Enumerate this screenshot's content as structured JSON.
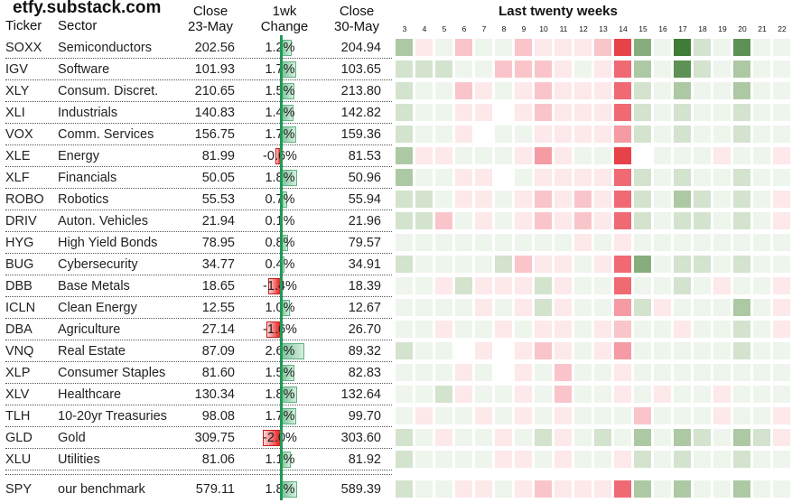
{
  "title": "etfy.substack.com",
  "headers": {
    "ticker": "Ticker",
    "sector": "Sector",
    "close1_line1": "Close",
    "close1_line2": "23-May",
    "chg_line1": "1wk",
    "chg_line2": "Change",
    "close2_line1": "Close",
    "close2_line2": "30-May",
    "weeks_title": "Last twenty weeks"
  },
  "weeks": [
    "3",
    "4",
    "5",
    "6",
    "7",
    "8",
    "9",
    "10",
    "11",
    "12",
    "13",
    "14",
    "15",
    "16",
    "17",
    "18",
    "19",
    "20",
    "21",
    "22"
  ],
  "colors": {
    "positive_bar": "#9fd4b2",
    "negative_bar": "#ee3b3b",
    "axis": "#1e9a55"
  },
  "rows": [
    {
      "ticker": "SOXX",
      "sector": "Semiconductors",
      "close1": "202.56",
      "change": "1.2%",
      "change_value": 1.2,
      "close2": "204.94",
      "heat": [
        3,
        -1,
        1,
        -2,
        1,
        1,
        -2,
        -1,
        -1,
        -1,
        -2,
        -5,
        4,
        1,
        6,
        2,
        1,
        5,
        1,
        1
      ]
    },
    {
      "ticker": "IGV",
      "sector": "Software",
      "close1": "101.93",
      "change": "1.7%",
      "change_value": 1.7,
      "close2": "103.65",
      "heat": [
        2,
        2,
        2,
        1,
        1,
        -2,
        -2,
        -2,
        -1,
        1,
        -1,
        -4,
        3,
        1,
        5,
        2,
        1,
        3,
        1,
        1
      ]
    },
    {
      "ticker": "XLY",
      "sector": "Consum. Discret.",
      "close1": "210.65",
      "change": "1.5%",
      "change_value": 1.5,
      "close2": "213.80",
      "heat": [
        2,
        1,
        1,
        -2,
        -1,
        1,
        -1,
        -2,
        -1,
        -1,
        -1,
        -4,
        2,
        1,
        3,
        1,
        1,
        3,
        1,
        1
      ]
    },
    {
      "ticker": "XLI",
      "sector": "Industrials",
      "close1": "140.83",
      "change": "1.4%",
      "change_value": 1.4,
      "close2": "142.82",
      "heat": [
        2,
        1,
        1,
        -1,
        -1,
        0,
        -1,
        -2,
        -1,
        -1,
        -1,
        -4,
        2,
        1,
        2,
        1,
        1,
        2,
        1,
        1
      ]
    },
    {
      "ticker": "VOX",
      "sector": "Comm. Services",
      "close1": "156.75",
      "change": "1.7%",
      "change_value": 1.7,
      "close2": "159.36",
      "heat": [
        2,
        1,
        1,
        -1,
        0,
        1,
        1,
        -1,
        -1,
        -1,
        -1,
        -3,
        2,
        1,
        2,
        1,
        1,
        2,
        1,
        1
      ]
    },
    {
      "ticker": "XLE",
      "sector": "Energy",
      "close1": "81.99",
      "change": "-0.6%",
      "change_value": -0.6,
      "close2": "81.53",
      "heat": [
        3,
        -1,
        -1,
        1,
        1,
        1,
        -1,
        -3,
        -1,
        1,
        1,
        -5,
        0,
        1,
        1,
        1,
        -1,
        1,
        1,
        -1
      ]
    },
    {
      "ticker": "XLF",
      "sector": "Financials",
      "close1": "50.05",
      "change": "1.8%",
      "change_value": 1.8,
      "close2": "50.96",
      "heat": [
        3,
        1,
        1,
        -1,
        -1,
        0,
        1,
        -1,
        -1,
        -1,
        -1,
        -4,
        2,
        1,
        2,
        1,
        1,
        2,
        1,
        1
      ]
    },
    {
      "ticker": "ROBO",
      "sector": "Robotics",
      "close1": "55.53",
      "change": "0.7%",
      "change_value": 0.7,
      "close2": "55.94",
      "heat": [
        2,
        2,
        1,
        -1,
        -1,
        1,
        -1,
        -2,
        -1,
        -2,
        -1,
        -4,
        2,
        1,
        3,
        2,
        1,
        2,
        1,
        -1
      ]
    },
    {
      "ticker": "DRIV",
      "sector": "Auton. Vehicles",
      "close1": "21.94",
      "change": "0.1%",
      "change_value": 0.1,
      "close2": "21.96",
      "heat": [
        2,
        2,
        -2,
        1,
        -1,
        1,
        -1,
        -2,
        -1,
        -2,
        -1,
        -4,
        2,
        1,
        2,
        2,
        1,
        2,
        1,
        -1
      ]
    },
    {
      "ticker": "HYG",
      "sector": "High Yield Bonds",
      "close1": "78.95",
      "change": "0.8%",
      "change_value": 0.8,
      "close2": "79.57",
      "heat": [
        1,
        1,
        1,
        1,
        1,
        1,
        1,
        1,
        1,
        -1,
        1,
        -1,
        1,
        1,
        1,
        1,
        1,
        1,
        1,
        1
      ]
    },
    {
      "ticker": "BUG",
      "sector": "Cybersecurity",
      "close1": "34.77",
      "change": "0.4%",
      "change_value": 0.4,
      "close2": "34.91",
      "heat": [
        2,
        1,
        1,
        1,
        1,
        2,
        -2,
        -1,
        -1,
        1,
        -1,
        -4,
        4,
        1,
        2,
        2,
        1,
        2,
        1,
        1
      ]
    },
    {
      "ticker": "DBB",
      "sector": "Base Metals",
      "close1": "18.65",
      "change": "-1.4%",
      "change_value": -1.4,
      "close2": "18.39",
      "heat": [
        1,
        1,
        -1,
        2,
        -1,
        -1,
        -1,
        2,
        -1,
        1,
        1,
        -4,
        1,
        1,
        2,
        1,
        -1,
        1,
        1,
        -1
      ]
    },
    {
      "ticker": "ICLN",
      "sector": "Clean Energy",
      "close1": "12.55",
      "change": "1.0%",
      "change_value": 1.0,
      "close2": "12.67",
      "heat": [
        1,
        1,
        1,
        1,
        -1,
        1,
        -1,
        2,
        -1,
        1,
        1,
        -3,
        2,
        -1,
        1,
        1,
        1,
        3,
        1,
        -1
      ]
    },
    {
      "ticker": "DBA",
      "sector": "Agriculture",
      "close1": "27.14",
      "change": "-1.6%",
      "change_value": -1.6,
      "close2": "26.70",
      "heat": [
        1,
        1,
        -1,
        1,
        1,
        -1,
        1,
        -1,
        -1,
        1,
        -1,
        -2,
        1,
        1,
        -1,
        1,
        1,
        2,
        1,
        -1
      ]
    },
    {
      "ticker": "VNQ",
      "sector": "Real Estate",
      "close1": "87.09",
      "change": "2.6%",
      "change_value": 2.6,
      "close2": "89.32",
      "heat": [
        2,
        1,
        1,
        0,
        -1,
        0,
        -1,
        -2,
        -1,
        1,
        -1,
        -3,
        1,
        1,
        1,
        1,
        1,
        2,
        1,
        1
      ]
    },
    {
      "ticker": "XLP",
      "sector": "Consumer Staples",
      "close1": "81.60",
      "change": "1.5%",
      "change_value": 1.5,
      "close2": "82.83",
      "heat": [
        1,
        1,
        1,
        -1,
        1,
        0,
        -1,
        1,
        -2,
        1,
        1,
        -1,
        1,
        1,
        1,
        1,
        1,
        1,
        1,
        1
      ]
    },
    {
      "ticker": "XLV",
      "sector": "Healthcare",
      "close1": "130.34",
      "change": "1.8%",
      "change_value": 1.8,
      "close2": "132.64",
      "heat": [
        1,
        1,
        2,
        -1,
        1,
        1,
        -1,
        1,
        -2,
        1,
        1,
        -1,
        1,
        -1,
        1,
        1,
        -1,
        1,
        1,
        1
      ]
    },
    {
      "ticker": "TLH",
      "sector": "10-20yr Treasuries",
      "close1": "98.08",
      "change": "1.7%",
      "change_value": 1.7,
      "close2": "99.70",
      "heat": [
        1,
        -1,
        1,
        1,
        -1,
        1,
        -1,
        1,
        -1,
        1,
        1,
        1,
        -2,
        1,
        1,
        1,
        -1,
        1,
        1,
        -1
      ]
    },
    {
      "ticker": "GLD",
      "sector": "Gold",
      "close1": "309.75",
      "change": "-2.0%",
      "change_value": -2.0,
      "close2": "303.60",
      "heat": [
        2,
        1,
        -1,
        1,
        1,
        -1,
        1,
        2,
        -1,
        1,
        2,
        1,
        3,
        1,
        3,
        2,
        1,
        3,
        2,
        -1
      ]
    },
    {
      "ticker": "XLU",
      "sector": "Utilities",
      "close1": "81.06",
      "change": "1.1%",
      "change_value": 1.1,
      "close2": "81.92",
      "heat": [
        2,
        1,
        1,
        1,
        1,
        -1,
        -1,
        1,
        -1,
        1,
        1,
        -1,
        2,
        1,
        2,
        1,
        1,
        2,
        1,
        1
      ]
    }
  ],
  "benchmark": {
    "ticker": "SPY",
    "sector": "our benchmark",
    "close1": "579.11",
    "change": "1.8%",
    "change_value": 1.8,
    "close2": "589.39",
    "heat": [
      2,
      1,
      1,
      -1,
      -1,
      1,
      -1,
      -2,
      -1,
      -1,
      -1,
      -4,
      3,
      1,
      3,
      1,
      1,
      3,
      1,
      1
    ]
  }
}
